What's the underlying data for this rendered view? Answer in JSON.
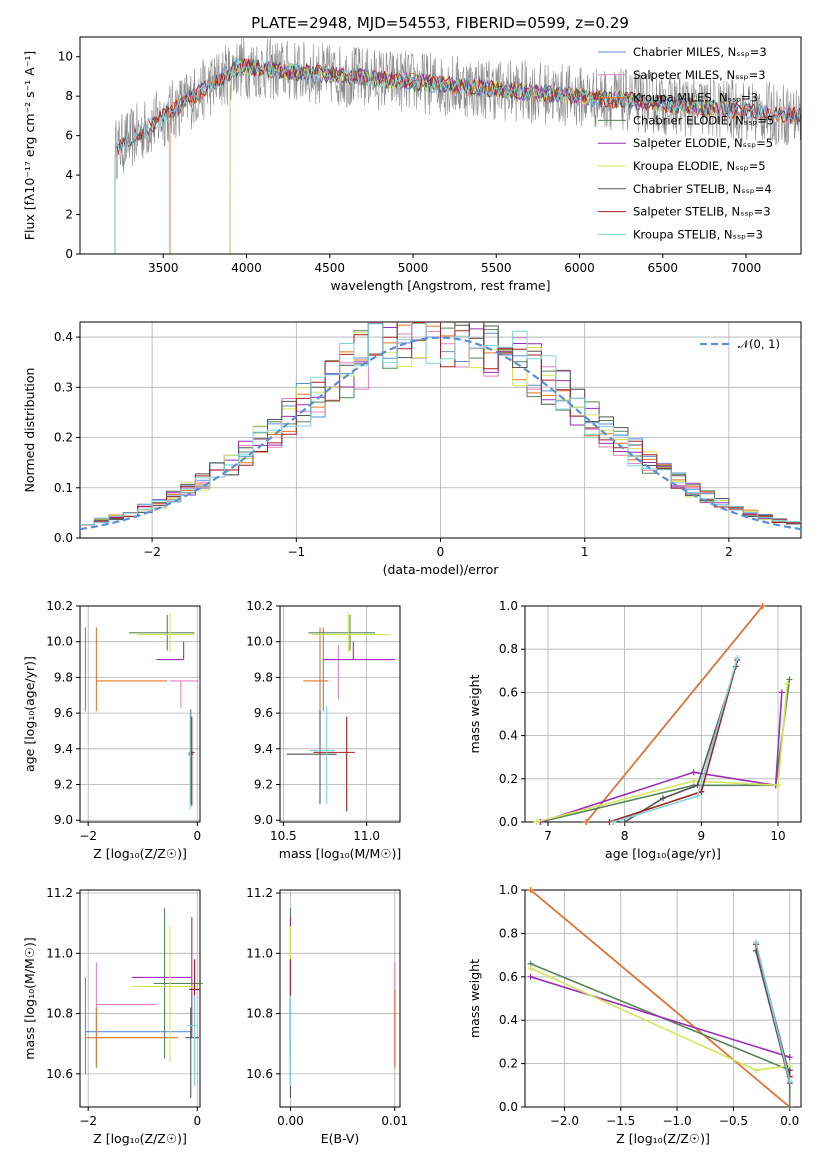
{
  "title": "PLATE=2948, MJD=54553, FIBERID=0599, z=0.29",
  "colors": [
    "#5b8fd9",
    "#e57fbf",
    "#e87425",
    "#58845a",
    "#9b2fb8",
    "#d2e65a",
    "#555555",
    "#a52020",
    "#7fd3dd"
  ],
  "chart_data": [
    {
      "type": "line",
      "id": "spectrum",
      "xlabel": "wavelength [Angstrom, rest frame]",
      "ylabel": "Flux [fλ10⁻¹⁷ erg cm⁻² s⁻¹ A⁻¹]",
      "xlim": [
        3000,
        7330
      ],
      "ylim": [
        0,
        11
      ],
      "xticks": [
        "3500",
        "4000",
        "4500",
        "5000",
        "5500",
        "6000",
        "6500",
        "7000"
      ],
      "yticks": [
        "0",
        "2",
        "4",
        "6",
        "8",
        "10"
      ],
      "grid": false,
      "legend_position": "top-right",
      "data_series": {
        "name": "",
        "color": "#888888",
        "x_start": 3210,
        "x_end": 7330,
        "value_at_start": 5.3,
        "plateau_from": 3950,
        "plateau_value": 9.5,
        "value_at_end": 7.0
      },
      "models": [
        {
          "name": "Chabrier MILES, N_SSP=3",
          "x_start": 3540,
          "x_end": 7330
        },
        {
          "name": "Salpeter MILES, N_SSP=3",
          "x_start": 3540,
          "x_end": 7330
        },
        {
          "name": "Kroupa MILES, N_SSP=3",
          "x_start": 3540,
          "x_end": 7330
        },
        {
          "name": "Chabrier ELODIE, N_SSP=5",
          "x_start": 3900,
          "x_end": 6800
        },
        {
          "name": "Salpeter ELODIE, N_SSP=5",
          "x_start": 3900,
          "x_end": 6800
        },
        {
          "name": "Kroupa ELODIE, N_SSP=5",
          "x_start": 3900,
          "x_end": 6800
        },
        {
          "name": "Chabrier STELIB, N_SSP=4",
          "x_start": 3210,
          "x_end": 7330
        },
        {
          "name": "Salpeter STELIB, N_SSP=3",
          "x_start": 3210,
          "x_end": 7330
        },
        {
          "name": "Kroupa STELIB, N_SSP=3",
          "x_start": 3210,
          "x_end": 7330
        }
      ]
    },
    {
      "type": "step",
      "id": "residuals",
      "xlabel": "(data-model)/error",
      "ylabel": "Normed distribution",
      "xlim": [
        -2.5,
        2.5
      ],
      "ylim": [
        0,
        0.43
      ],
      "xticks": [
        "−2",
        "−1",
        "0",
        "1",
        "2"
      ],
      "yticks": [
        "0.0",
        "0.1",
        "0.2",
        "0.3",
        "0.4"
      ],
      "grid": true,
      "legend_position": "top-right",
      "gaussian": {
        "label": "𝒩(0, 1)",
        "mean": 0,
        "sigma": 1
      },
      "bin_width": 0.1
    },
    {
      "type": "scatter",
      "id": "age-vs-z",
      "xlabel": "Z [log₁₀(Z/Z☉)]",
      "ylabel": "age  [log₁₀(age/yr)]",
      "xlim": [
        -2.15,
        0.05
      ],
      "ylim": [
        8.99,
        10.2
      ],
      "xticks": [
        "−2",
        "0"
      ],
      "yticks": [
        "9.0",
        "9.2",
        "9.4",
        "9.6",
        "9.8",
        "10.0",
        "10.2"
      ],
      "grid": true,
      "points": [
        {
          "x": -2.05,
          "y": 9.78,
          "xerr": [
            0,
            0
          ],
          "yerr": [
            0.17,
            0.3
          ]
        },
        {
          "x": -0.3,
          "y": 9.78,
          "xerr": [
            0.2,
            0.35
          ],
          "yerr": [
            0.15,
            0.0
          ]
        },
        {
          "x": -1.85,
          "y": 9.78,
          "xerr": [
            0,
            1.3
          ],
          "yerr": [
            0.17,
            0.3
          ]
        },
        {
          "x": -0.55,
          "y": 10.05,
          "xerr": [
            0.7,
            0.5
          ],
          "yerr": [
            0.1,
            0.1
          ]
        },
        {
          "x": -0.25,
          "y": 9.9,
          "xerr": [
            0.5,
            0.0
          ],
          "yerr": [
            0.0,
            0.1
          ]
        },
        {
          "x": -0.5,
          "y": 10.04,
          "xerr": [
            0.6,
            0.45
          ],
          "yerr": [
            0.1,
            0.12
          ]
        },
        {
          "x": -0.12,
          "y": 9.37,
          "xerr": [
            0.05,
            0.05
          ],
          "yerr": [
            0.28,
            0.25
          ]
        },
        {
          "x": -0.1,
          "y": 9.38,
          "xerr": [
            0.05,
            0.05
          ],
          "yerr": [
            0.3,
            0.2
          ]
        },
        {
          "x": -0.13,
          "y": 9.36,
          "xerr": [
            0.02,
            0.02
          ],
          "yerr": [
            0.3,
            0.25
          ]
        }
      ]
    },
    {
      "type": "scatter",
      "id": "age-vs-mass",
      "xlabel": "mass [log₁₀(M/M☉)]",
      "ylabel": "",
      "xlim": [
        10.48,
        11.2
      ],
      "ylim": [
        8.99,
        10.2
      ],
      "xticks": [
        "10.5",
        "11.0"
      ],
      "yticks": [
        "9.0",
        "9.2",
        "9.4",
        "9.6",
        "9.8",
        "10.0",
        "10.2"
      ],
      "grid": true,
      "points": [
        {
          "x": 10.74,
          "y": 9.78,
          "xerr": [
            0.0,
            0.0
          ],
          "yerr": [
            0.17,
            0.3
          ]
        },
        {
          "x": 10.83,
          "y": 9.78,
          "xerr": [
            0.0,
            0.0
          ],
          "yerr": [
            0.1,
            0.2
          ]
        },
        {
          "x": 10.72,
          "y": 9.78,
          "xerr": [
            0.1,
            0.05
          ],
          "yerr": [
            0.17,
            0.3
          ]
        },
        {
          "x": 10.9,
          "y": 10.05,
          "xerr": [
            0.25,
            0.15
          ],
          "yerr": [
            0.1,
            0.1
          ]
        },
        {
          "x": 10.92,
          "y": 9.9,
          "xerr": [
            0.18,
            0.25
          ],
          "yerr": [
            0.0,
            0.1
          ]
        },
        {
          "x": 10.89,
          "y": 10.04,
          "xerr": [
            0.22,
            0.25
          ],
          "yerr": [
            0.1,
            0.12
          ]
        },
        {
          "x": 10.72,
          "y": 9.37,
          "xerr": [
            0.2,
            0.1
          ],
          "yerr": [
            0.28,
            0.25
          ]
        },
        {
          "x": 10.88,
          "y": 9.38,
          "xerr": [
            0.2,
            0.05
          ],
          "yerr": [
            0.33,
            0.2
          ]
        },
        {
          "x": 10.76,
          "y": 9.39,
          "xerr": [
            0.1,
            0.05
          ],
          "yerr": [
            0.3,
            0.25
          ]
        }
      ]
    },
    {
      "type": "line",
      "id": "mass-weight-vs-age",
      "xlabel": "age  [log₁₀(age/yr)]",
      "ylabel": "mass weight",
      "xlim": [
        6.7,
        10.3
      ],
      "ylim": [
        0,
        1.0
      ],
      "xticks": [
        "7",
        "8",
        "9",
        "10"
      ],
      "yticks": [
        "0.0",
        "0.2",
        "0.4",
        "0.6",
        "0.8",
        "1.0"
      ],
      "grid": true,
      "series": [
        {
          "x": [
            7.5,
            9.8
          ],
          "y": [
            0.0,
            1.0
          ]
        },
        {
          "x": [
            7.5,
            9.8
          ],
          "y": [
            0.0,
            1.0
          ]
        },
        {
          "x": [
            7.5,
            9.8
          ],
          "y": [
            0.0,
            1.0
          ]
        },
        {
          "x": [
            6.9,
            8.9,
            9.97,
            10.15
          ],
          "y": [
            0.0,
            0.17,
            0.17,
            0.66
          ]
        },
        {
          "x": [
            6.9,
            8.9,
            9.97,
            10.05
          ],
          "y": [
            0.0,
            0.23,
            0.17,
            0.6
          ]
        },
        {
          "x": [
            6.85,
            8.9,
            10.0,
            10.12
          ],
          "y": [
            0.0,
            0.19,
            0.17,
            0.64
          ]
        },
        {
          "x": [
            8.0,
            8.5,
            8.95,
            9.45
          ],
          "y": [
            0.0,
            0.11,
            0.17,
            0.72
          ]
        },
        {
          "x": [
            7.8,
            9.0,
            9.47
          ],
          "y": [
            0.0,
            0.14,
            0.75
          ]
        },
        {
          "x": [
            7.85,
            8.95,
            9.47
          ],
          "y": [
            0.0,
            0.12,
            0.76
          ]
        }
      ]
    },
    {
      "type": "scatter",
      "id": "mass-vs-z",
      "xlabel": "Z [log₁₀(Z/Z☉)]",
      "ylabel": "mass [log₁₀(M/M☉)]",
      "xlim": [
        -2.15,
        0.05
      ],
      "ylim": [
        10.49,
        11.21
      ],
      "xticks": [
        "−2",
        "0"
      ],
      "yticks": [
        "10.6",
        "10.8",
        "11.0",
        "11.2"
      ],
      "grid": true,
      "points": [
        {
          "x": -2.05,
          "y": 10.74,
          "xerr": [
            0,
            1.95
          ],
          "yerr": [
            0.14,
            0.18
          ]
        },
        {
          "x": -1.85,
          "y": 10.83,
          "xerr": [
            0,
            1.1
          ],
          "yerr": [
            0.2,
            0.14
          ]
        },
        {
          "x": -1.85,
          "y": 10.72,
          "xerr": [
            0.2,
            1.5
          ],
          "yerr": [
            0.1,
            0.1
          ]
        },
        {
          "x": -0.6,
          "y": 10.9,
          "xerr": [
            0.2,
            0.7
          ],
          "yerr": [
            0.25,
            0.25
          ]
        },
        {
          "x": -0.1,
          "y": 10.92,
          "xerr": [
            1.1,
            0.0
          ],
          "yerr": [
            0.2,
            0.2
          ]
        },
        {
          "x": -0.5,
          "y": 10.89,
          "xerr": [
            0.7,
            0.5
          ],
          "yerr": [
            0.25,
            0.2
          ]
        },
        {
          "x": -0.12,
          "y": 10.72,
          "xerr": [
            0.1,
            0.15
          ],
          "yerr": [
            0.2,
            0.1
          ]
        },
        {
          "x": -0.05,
          "y": 10.88,
          "xerr": [
            0.1,
            0.1
          ],
          "yerr": [
            0.3,
            0.1
          ]
        },
        {
          "x": -0.05,
          "y": 10.76,
          "xerr": [
            0.15,
            0.05
          ],
          "yerr": [
            0.2,
            0.1
          ]
        }
      ]
    },
    {
      "type": "scatter",
      "id": "mass-vs-ebv",
      "xlabel": "E(B-V)",
      "ylabel": "",
      "xlim": [
        -0.001,
        0.0105
      ],
      "ylim": [
        10.49,
        11.21
      ],
      "xticks": [
        "0.00",
        "0.01"
      ],
      "yticks": [
        "10.6",
        "10.8",
        "11.0",
        "11.2"
      ],
      "grid": true,
      "points": [
        {
          "x": 0.0,
          "y": 10.74,
          "yerr": [
            0.18,
            0.18
          ]
        },
        {
          "x": 0.01,
          "y": 10.83,
          "yerr": [
            0.2,
            0.14
          ]
        },
        {
          "x": 0.01,
          "y": 10.72,
          "yerr": [
            0.1,
            0.16
          ]
        },
        {
          "x": 0.0,
          "y": 10.9,
          "yerr": [
            0.25,
            0.25
          ]
        },
        {
          "x": 0.0,
          "y": 10.92,
          "yerr": [
            0.2,
            0.2
          ]
        },
        {
          "x": 0.0,
          "y": 10.89,
          "yerr": [
            0.25,
            0.2
          ]
        },
        {
          "x": 0.0,
          "y": 10.72,
          "yerr": [
            0.2,
            0.1
          ]
        },
        {
          "x": 0.0,
          "y": 10.88,
          "yerr": [
            0.3,
            0.1
          ]
        },
        {
          "x": 0.0,
          "y": 10.76,
          "yerr": [
            0.2,
            0.1
          ]
        }
      ]
    },
    {
      "type": "line",
      "id": "mass-weight-vs-z",
      "xlabel": "Z [log₁₀(Z/Z☉)]",
      "ylabel": "mass weight",
      "xlim": [
        -2.35,
        0.1
      ],
      "ylim": [
        0,
        1.0
      ],
      "xticks": [
        "−2.0",
        "−1.5",
        "−1.0",
        "−0.5",
        "0.0"
      ],
      "yticks": [
        "0.0",
        "0.2",
        "0.4",
        "0.6",
        "0.8",
        "1.0"
      ],
      "grid": true,
      "series": [
        {
          "x": [
            -2.3,
            0.0
          ],
          "y": [
            1.0,
            0.0
          ]
        },
        {
          "x": [
            -2.3,
            0.0
          ],
          "y": [
            1.0,
            0.0
          ]
        },
        {
          "x": [
            -2.3,
            0.0
          ],
          "y": [
            1.0,
            0.0
          ]
        },
        {
          "x": [
            -2.3,
            0.0,
            0.0
          ],
          "y": [
            0.66,
            0.17,
            0.0
          ]
        },
        {
          "x": [
            -2.3,
            0.0
          ],
          "y": [
            0.6,
            0.23
          ]
        },
        {
          "x": [
            -2.3,
            -0.3,
            0.0
          ],
          "y": [
            0.64,
            0.17,
            0.19
          ]
        },
        {
          "x": [
            -0.3,
            0.0,
            0.0
          ],
          "y": [
            0.72,
            0.11,
            0.17
          ]
        },
        {
          "x": [
            -0.3,
            0.0
          ],
          "y": [
            0.75,
            0.14
          ]
        },
        {
          "x": [
            -0.3,
            0.0
          ],
          "y": [
            0.76,
            0.12
          ]
        }
      ]
    }
  ]
}
